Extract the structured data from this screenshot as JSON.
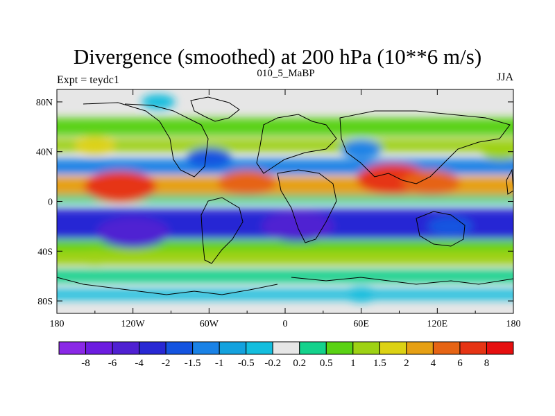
{
  "chart_data": {
    "type": "heatmap",
    "title": "Divergence (smoothed) at 200 hPa (10**6 m/s)",
    "subtitle": "010_5_MaBP",
    "left_label": "Expt = teydc1",
    "right_label": "JJA",
    "x_ticks": [
      "180",
      "120W",
      "60W",
      "0",
      "60E",
      "120E",
      "180"
    ],
    "x_tick_values": [
      -180,
      -120,
      -60,
      0,
      60,
      120,
      180
    ],
    "y_ticks": [
      "80N",
      "40N",
      "0",
      "40S",
      "80S"
    ],
    "y_tick_values": [
      80,
      40,
      0,
      -40,
      -80
    ],
    "xlim": [
      -180,
      180
    ],
    "ylim": [
      -90,
      90
    ],
    "colorbar_labels": [
      "-8",
      "-6",
      "-4",
      "-2",
      "-1.5",
      "-1",
      "-0.5",
      "-0.2",
      "0.2",
      "0.5",
      "1",
      "1.5",
      "2",
      "4",
      "6",
      "8"
    ],
    "colorbar_levels": [
      -8,
      -6,
      -4,
      -2,
      -1.5,
      -1,
      -0.5,
      -0.2,
      0.2,
      0.5,
      1,
      1.5,
      2,
      4,
      6,
      8
    ],
    "colorbar_colors": [
      "#8a28e6",
      "#6c1ce0",
      "#4f20d2",
      "#2828d4",
      "#1454e0",
      "#1a82e6",
      "#14a2de",
      "#14bede",
      "#e6e6e6",
      "#14d28c",
      "#5ad214",
      "#9ed214",
      "#dcd214",
      "#e6a014",
      "#e66414",
      "#e63414",
      "#e60f0f"
    ],
    "field_features": [
      {
        "lon": -130,
        "lat": 12,
        "value": 6
      },
      {
        "lon": -30,
        "lat": 15,
        "value": 4
      },
      {
        "lon": 85,
        "lat": 18,
        "value": 6
      },
      {
        "lon": 115,
        "lat": 15,
        "value": 4
      },
      {
        "lon": -150,
        "lat": 45,
        "value": 1.5
      },
      {
        "lon": 170,
        "lat": 40,
        "value": 1
      },
      {
        "lon": -120,
        "lat": -25,
        "value": -6
      },
      {
        "lon": 10,
        "lat": -20,
        "value": -6
      },
      {
        "lon": 130,
        "lat": -20,
        "value": -2
      },
      {
        "lon": -60,
        "lat": 35,
        "value": -2
      },
      {
        "lon": 60,
        "lat": 42,
        "value": -1.5
      },
      {
        "lon": -150,
        "lat": -45,
        "value": 1
      },
      {
        "lon": 60,
        "lat": -75,
        "value": -0.5
      },
      {
        "lon": -100,
        "lat": 80,
        "value": -0.5
      }
    ]
  }
}
